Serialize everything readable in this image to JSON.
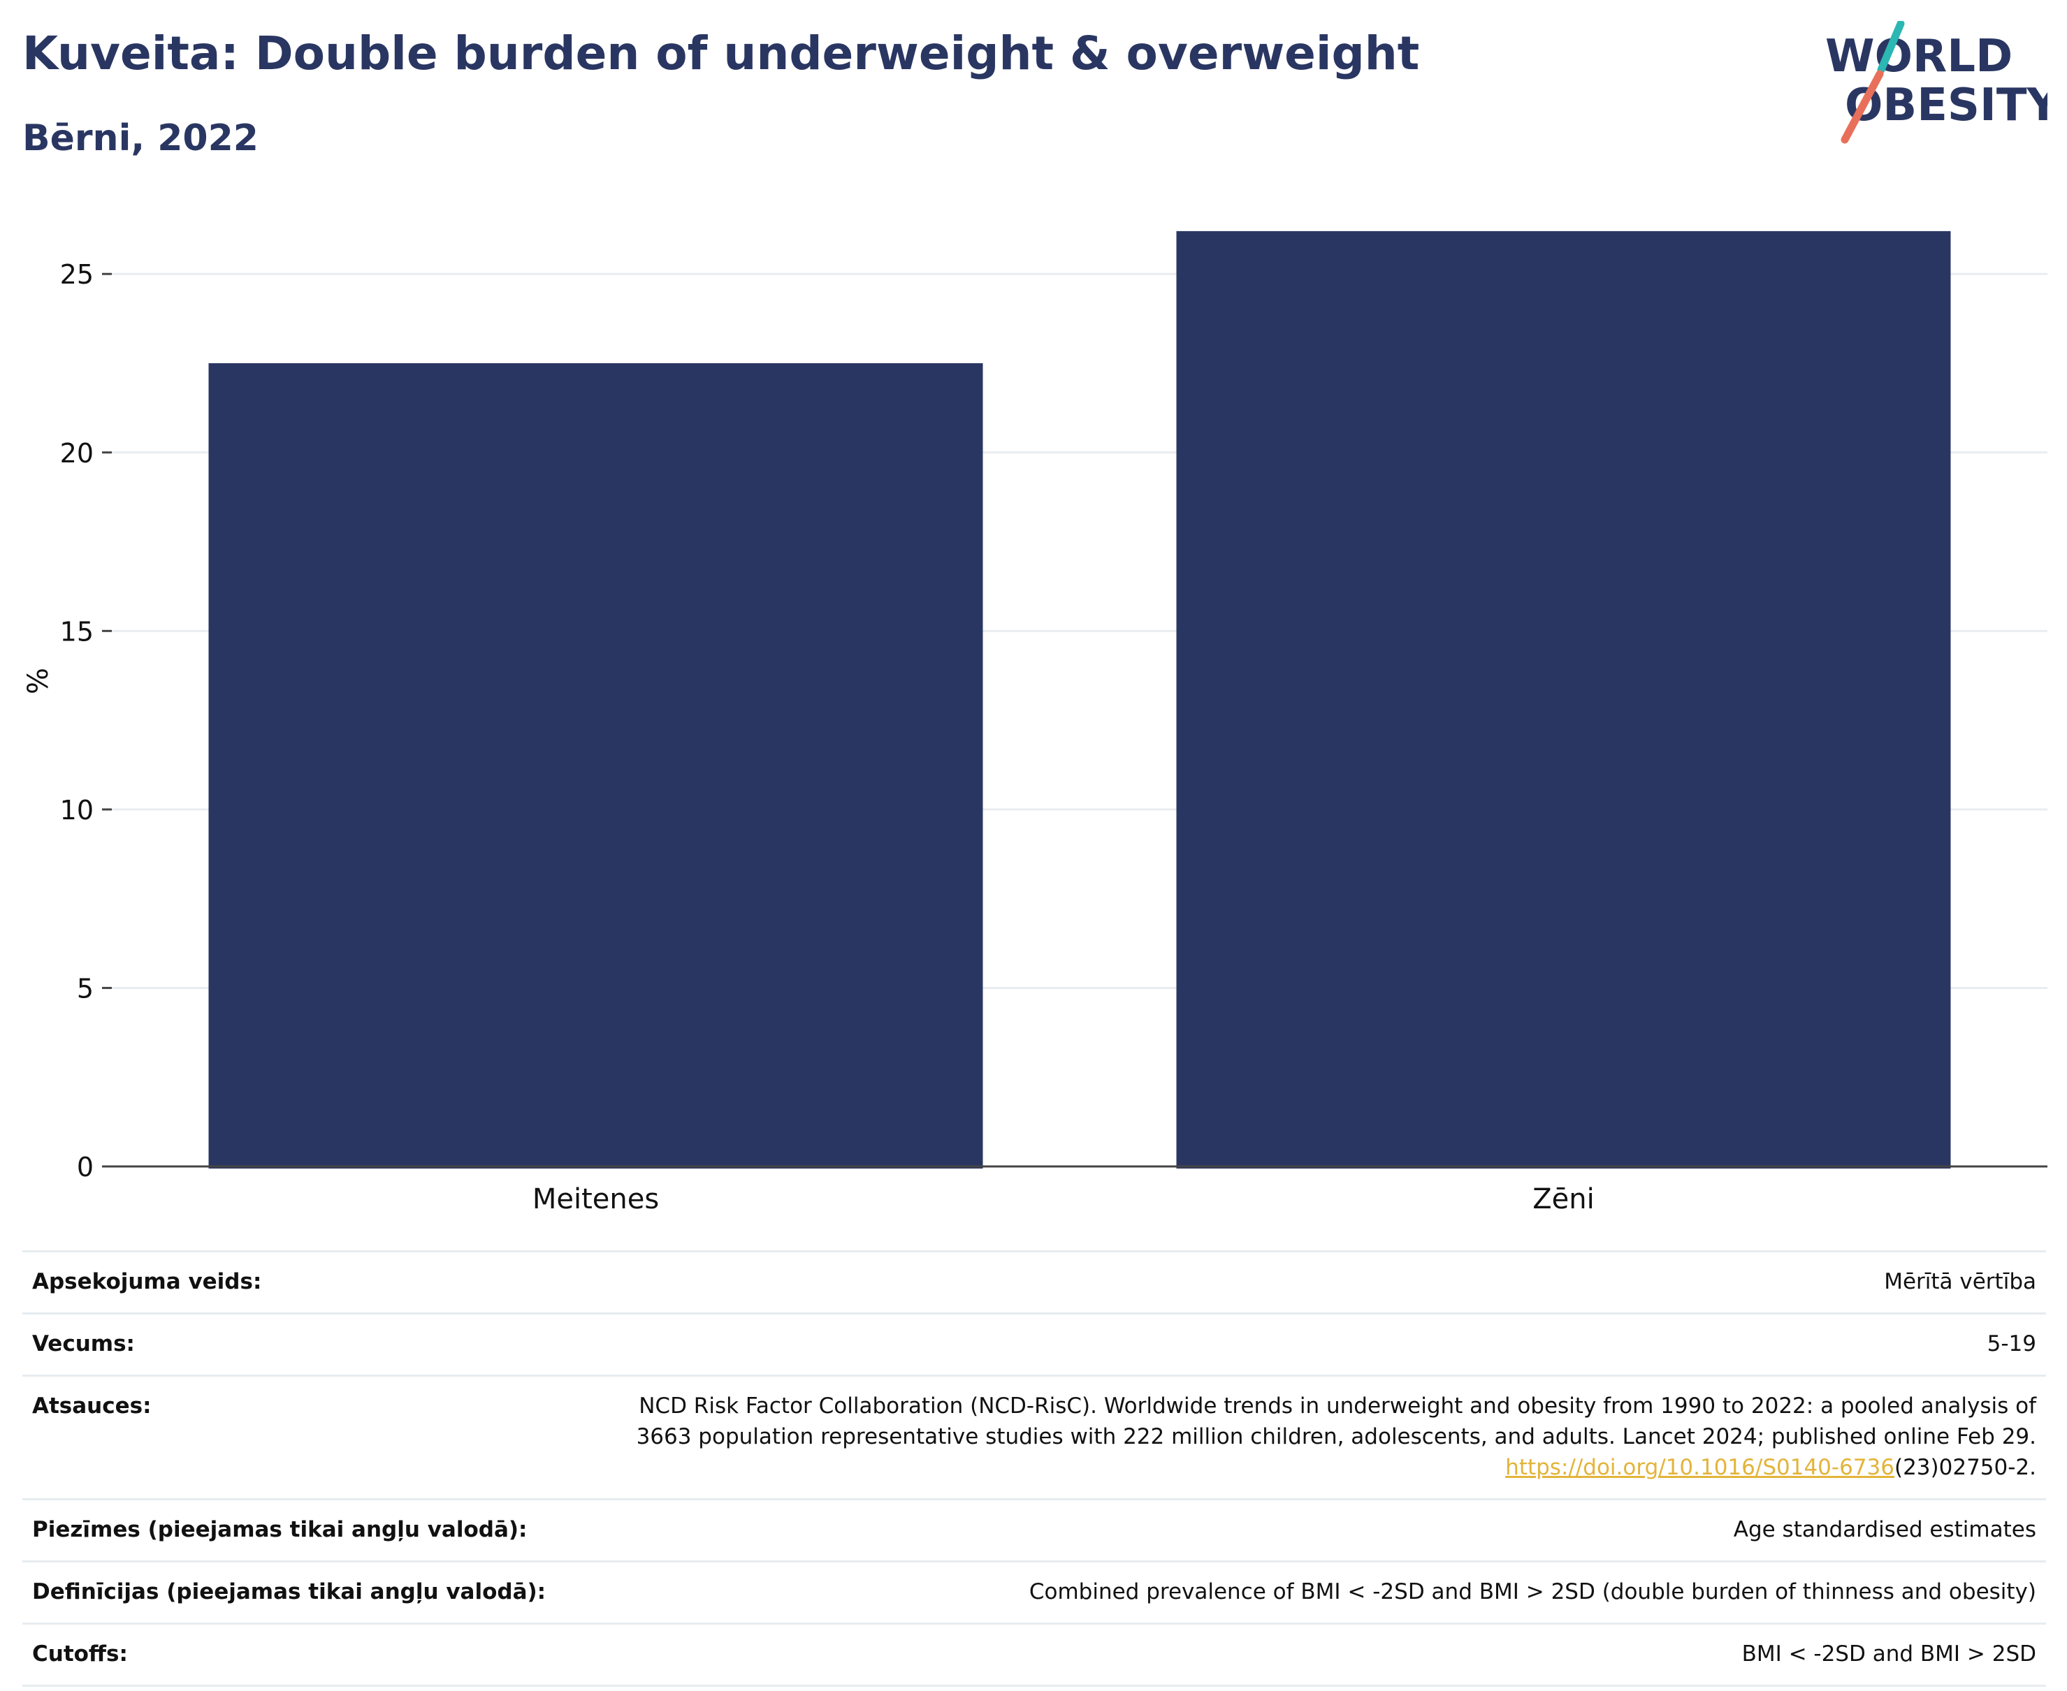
{
  "header": {
    "title": "Kuveita: Double burden of underweight & overweight",
    "subtitle": "Bērni, 2022"
  },
  "logo": {
    "line1": "WORLD",
    "line2": "OBESITY",
    "slash_top_color": "#2bb7b3",
    "slash_bottom_color": "#e8705a"
  },
  "chart_data": {
    "type": "bar",
    "categories": [
      "Meitenes",
      "Zēni"
    ],
    "values": [
      22.5,
      26.2
    ],
    "title": "",
    "xlabel": "",
    "ylabel": "%",
    "ylim": [
      0,
      27
    ],
    "yticks": [
      0,
      5,
      10,
      15,
      20,
      25
    ],
    "grid": true,
    "bar_color": "#2a3662"
  },
  "meta": {
    "rows": [
      {
        "label": "Apsekojuma veids:",
        "value": "Mērītā vērtība"
      },
      {
        "label": "Vecums:",
        "value": "5-19"
      },
      {
        "label": "Atsauces:",
        "value_lines": [
          "NCD Risk Factor Collaboration (NCD-RisC). Worldwide trends in underweight and obesity from 1990 to 2022: a pooled analysis of",
          "3663 population representative studies with 222 million children, adolescents, and adults. Lancet 2024; published online Feb 29."
        ],
        "link_text": "https://doi.org/10.1016/S0140-6736",
        "link_suffix": "(23)02750-2."
      },
      {
        "label": "Piezīmes (pieejamas tikai angļu valodā):",
        "value": "Age standardised estimates"
      },
      {
        "label": "Definīcijas (pieejamas tikai angļu valodā):",
        "value": "Combined prevalence of BMI < -2SD and BMI > 2SD (double burden of thinness and obesity)"
      },
      {
        "label": "Cutoffs:",
        "value": "BMI < -2SD and BMI > 2SD"
      }
    ]
  }
}
